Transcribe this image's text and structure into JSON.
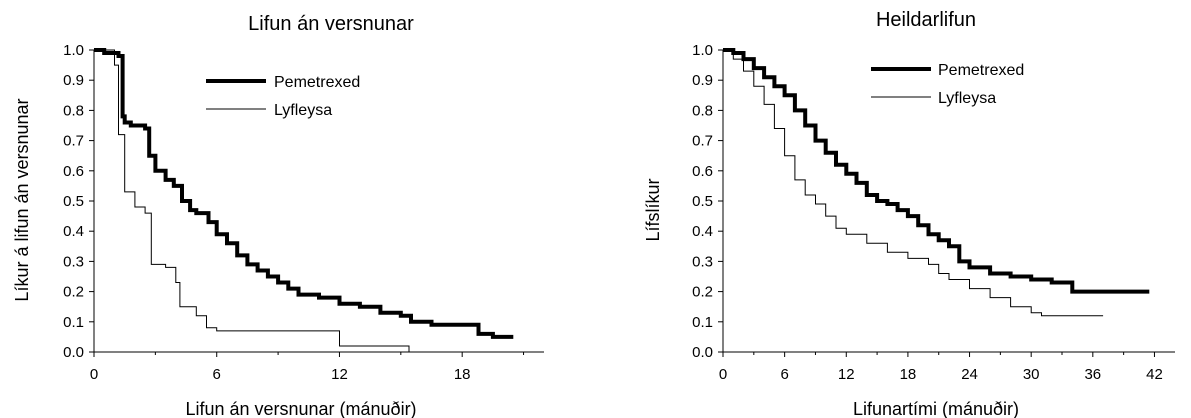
{
  "chart_data": [
    {
      "type": "line",
      "title": "Lifun án versnunar",
      "xlabel": "Lifun án versnunar (mánuðir)",
      "ylabel": "Líkur á lifun án versnunar",
      "xlim": [
        0,
        22
      ],
      "ylim": [
        0,
        1.0
      ],
      "xticks": [
        "0",
        "6",
        "12",
        "18"
      ],
      "yticks": [
        "0.0",
        "0.1",
        "0.2",
        "0.3",
        "0.4",
        "0.5",
        "0.6",
        "0.7",
        "0.8",
        "0.9",
        "1.0"
      ],
      "legend_position": "top-right",
      "grid": false,
      "series": [
        {
          "name": "Pemetrexed",
          "style": "thick",
          "x": [
            0,
            0.5,
            1.2,
            1.4,
            1.5,
            1.8,
            2.5,
            2.7,
            3.0,
            3.5,
            3.9,
            4.3,
            4.7,
            5.0,
            5.6,
            6.0,
            6.5,
            7.0,
            7.5,
            8.0,
            8.5,
            9.0,
            9.5,
            10.0,
            11.0,
            12.0,
            13.0,
            14.0,
            15.0,
            15.5,
            16.5,
            17.5,
            18.2,
            18.8,
            19.5,
            20.5
          ],
          "y": [
            1.0,
            0.99,
            0.98,
            0.78,
            0.76,
            0.75,
            0.74,
            0.65,
            0.6,
            0.57,
            0.55,
            0.5,
            0.47,
            0.46,
            0.43,
            0.39,
            0.36,
            0.32,
            0.29,
            0.27,
            0.25,
            0.23,
            0.21,
            0.19,
            0.18,
            0.16,
            0.15,
            0.13,
            0.12,
            0.1,
            0.09,
            0.09,
            0.09,
            0.06,
            0.05,
            0.05
          ]
        },
        {
          "name": "Lyfleysa",
          "style": "thin",
          "x": [
            0,
            1.0,
            1.2,
            1.5,
            2.0,
            2.5,
            2.8,
            3.5,
            4.0,
            4.2,
            5.0,
            5.5,
            6.0,
            7.0,
            12.0,
            12.2,
            15.4
          ],
          "y": [
            1.0,
            0.95,
            0.72,
            0.53,
            0.48,
            0.46,
            0.29,
            0.28,
            0.23,
            0.15,
            0.12,
            0.08,
            0.07,
            0.07,
            0.02,
            0.02,
            0.0
          ]
        }
      ]
    },
    {
      "type": "line",
      "title": "Heildarlifun",
      "xlabel": "Lifunartími (mánuðir)",
      "ylabel": "Lífslíkur",
      "xlim": [
        0,
        44
      ],
      "ylim": [
        0,
        1.0
      ],
      "xticks": [
        "0",
        "6",
        "12",
        "18",
        "24",
        "30",
        "36",
        "42"
      ],
      "yticks": [
        "0.0",
        "0.1",
        "0.2",
        "0.3",
        "0.4",
        "0.5",
        "0.6",
        "0.7",
        "0.8",
        "0.9",
        "1.0"
      ],
      "legend_position": "top-right",
      "grid": false,
      "series": [
        {
          "name": "Pemetrexed",
          "style": "thick",
          "x": [
            0,
            1,
            2,
            3,
            4,
            5,
            6,
            7,
            8,
            9,
            10,
            11,
            12,
            13,
            14,
            15,
            16,
            17,
            18,
            19,
            20,
            21,
            22,
            23,
            24,
            26,
            28,
            30,
            32,
            34,
            36,
            38,
            40,
            41.5
          ],
          "y": [
            1.0,
            0.99,
            0.97,
            0.94,
            0.91,
            0.88,
            0.85,
            0.8,
            0.75,
            0.7,
            0.66,
            0.62,
            0.59,
            0.56,
            0.52,
            0.5,
            0.49,
            0.47,
            0.45,
            0.42,
            0.39,
            0.37,
            0.35,
            0.3,
            0.28,
            0.26,
            0.25,
            0.24,
            0.23,
            0.2,
            0.2,
            0.2,
            0.2,
            0.2
          ]
        },
        {
          "name": "Lyfleysa",
          "style": "thin",
          "x": [
            0,
            1,
            2,
            3,
            4,
            5,
            6,
            7,
            8,
            9,
            10,
            11,
            12,
            14,
            16,
            18,
            20,
            21,
            22,
            24,
            26,
            28,
            30,
            31,
            33,
            35,
            37
          ],
          "y": [
            1.0,
            0.97,
            0.93,
            0.88,
            0.82,
            0.74,
            0.65,
            0.57,
            0.52,
            0.49,
            0.45,
            0.41,
            0.39,
            0.36,
            0.33,
            0.31,
            0.29,
            0.26,
            0.24,
            0.21,
            0.18,
            0.15,
            0.13,
            0.12,
            0.12,
            0.12,
            0.12
          ]
        }
      ]
    }
  ]
}
